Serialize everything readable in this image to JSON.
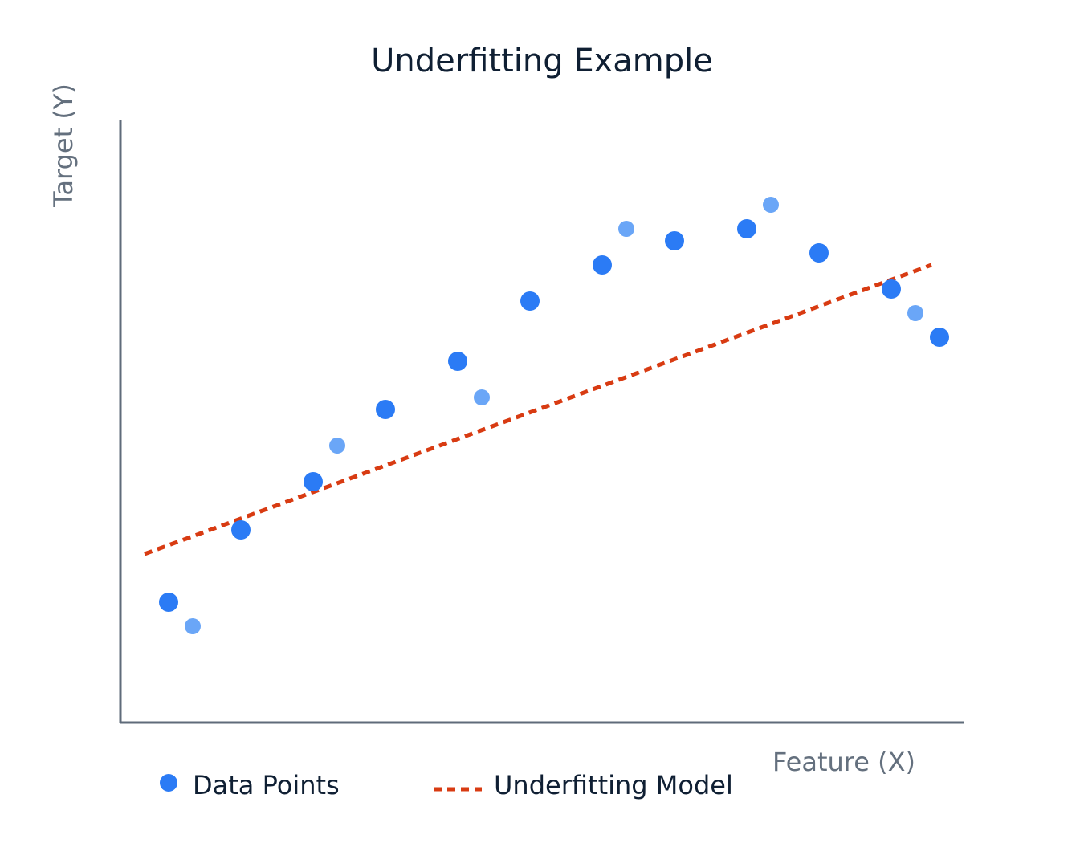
{
  "chart_data": {
    "type": "scatter",
    "title": "Underfitting Example",
    "xlabel": "Feature (X)",
    "ylabel": "Target (Y)",
    "xlim": [
      0,
      10.5
    ],
    "ylim": [
      0,
      10
    ],
    "grid": false,
    "legend_position": "bottom",
    "series": [
      {
        "name": "Data Points",
        "kind": "scatter",
        "color": "#2b7bf5",
        "light_color": "#6aa6f7",
        "points": [
          {
            "x": 0.6,
            "y": 2.0,
            "tone": "dark"
          },
          {
            "x": 0.9,
            "y": 1.6,
            "tone": "light"
          },
          {
            "x": 1.5,
            "y": 3.2,
            "tone": "dark"
          },
          {
            "x": 2.4,
            "y": 4.0,
            "tone": "dark"
          },
          {
            "x": 2.7,
            "y": 4.6,
            "tone": "light"
          },
          {
            "x": 3.3,
            "y": 5.2,
            "tone": "dark"
          },
          {
            "x": 4.2,
            "y": 6.0,
            "tone": "dark"
          },
          {
            "x": 4.5,
            "y": 5.4,
            "tone": "light"
          },
          {
            "x": 5.1,
            "y": 7.0,
            "tone": "dark"
          },
          {
            "x": 6.0,
            "y": 7.6,
            "tone": "dark"
          },
          {
            "x": 6.3,
            "y": 8.2,
            "tone": "light"
          },
          {
            "x": 6.9,
            "y": 8.0,
            "tone": "dark"
          },
          {
            "x": 7.8,
            "y": 8.2,
            "tone": "dark"
          },
          {
            "x": 8.1,
            "y": 8.6,
            "tone": "light"
          },
          {
            "x": 8.7,
            "y": 7.8,
            "tone": "dark"
          },
          {
            "x": 9.6,
            "y": 7.2,
            "tone": "dark"
          },
          {
            "x": 9.9,
            "y": 6.8,
            "tone": "light"
          },
          {
            "x": 10.2,
            "y": 6.4,
            "tone": "dark"
          }
        ]
      },
      {
        "name": "Underfitting Model",
        "kind": "line",
        "style": "dashed",
        "color": "#d83b12",
        "points": [
          {
            "x": 0.3,
            "y": 2.8
          },
          {
            "x": 10.1,
            "y": 7.6
          }
        ]
      }
    ],
    "axis_color": "#5f6b7a"
  }
}
